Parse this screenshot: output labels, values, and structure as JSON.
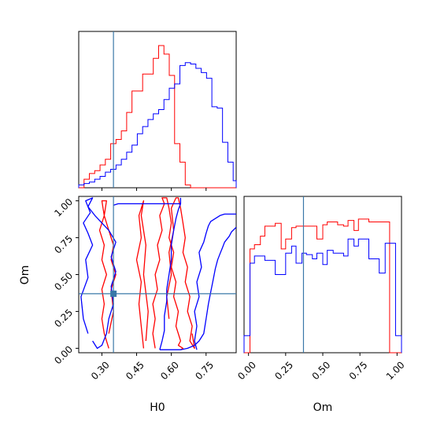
{
  "chart_data": {
    "type": "corner",
    "title": "",
    "parameters": [
      {
        "name": "H0",
        "label": "H0",
        "range": [
          0.2,
          0.88
        ],
        "ticks": [
          0.3,
          0.45,
          0.6,
          0.75
        ],
        "tick_labels": [
          "0.30",
          "0.45",
          "0.60",
          "0.75"
        ]
      },
      {
        "name": "Om",
        "label": "Om",
        "range": [
          -0.03,
          1.03
        ],
        "ticks": [
          0.0,
          0.25,
          0.5,
          0.75,
          1.0
        ],
        "tick_labels": [
          "0.00",
          "0.25",
          "0.50",
          "0.75",
          "1.00"
        ]
      }
    ],
    "truth": {
      "H0": 0.35,
      "Om": 0.37,
      "color": "#3a78a8"
    },
    "series": [
      {
        "color": "#ff0000",
        "hist_H0": {
          "edges": [
            0.2,
            0.223,
            0.246,
            0.269,
            0.292,
            0.315,
            0.338,
            0.361,
            0.384,
            0.407,
            0.43,
            0.453,
            0.476,
            0.499,
            0.522,
            0.545,
            0.568,
            0.591,
            0.614,
            0.637,
            0.66,
            0.683,
            0.706,
            0.729,
            0.752,
            0.775,
            0.798,
            0.821,
            0.844,
            0.867,
            0.88
          ],
          "heights": [
            0.0,
            0.06,
            0.1,
            0.12,
            0.16,
            0.2,
            0.31,
            0.34,
            0.4,
            0.53,
            0.68,
            0.68,
            0.8,
            0.8,
            0.91,
            1.0,
            0.94,
            0.79,
            0.31,
            0.18,
            0.02,
            0,
            0,
            0,
            0,
            0,
            0,
            0,
            0,
            0
          ]
        },
        "hist_Om": {
          "edges": [
            -0.03,
            0.01,
            0.04,
            0.08,
            0.11,
            0.15,
            0.18,
            0.22,
            0.25,
            0.29,
            0.32,
            0.36,
            0.39,
            0.43,
            0.46,
            0.5,
            0.53,
            0.57,
            0.6,
            0.64,
            0.67,
            0.71,
            0.74,
            0.78,
            0.81,
            0.85,
            0.88,
            0.92,
            0.95,
            0.99,
            1.03
          ],
          "heights": [
            0.0,
            0.73,
            0.76,
            0.82,
            0.89,
            0.89,
            0.91,
            0.73,
            0.8,
            0.88,
            0.89,
            0.89,
            0.89,
            0.89,
            0.8,
            0.9,
            0.92,
            0.92,
            0.9,
            0.89,
            0.93,
            0.86,
            0.94,
            0.94,
            0.92,
            0.92,
            0.92,
            0.92,
            0.0,
            0.0
          ]
        },
        "contours": [
          {
            "x": [
              0.33,
              0.31,
              0.3,
              0.31,
              0.3,
              0.32,
              0.3,
              0.31,
              0.29,
              0.31,
              0.3,
              0.32,
              0.31,
              0.33,
              0.35,
              0.34,
              0.36,
              0.34,
              0.35,
              0.33
            ],
            "y": [
              0.0,
              0.1,
              0.2,
              0.3,
              0.4,
              0.5,
              0.6,
              0.7,
              0.8,
              0.9,
              1.0,
              1.0,
              0.9,
              0.8,
              0.7,
              0.6,
              0.5,
              0.4,
              0.25,
              0.1
            ]
          },
          {
            "x": [
              0.48,
              0.47,
              0.46,
              0.47,
              0.45,
              0.47,
              0.46,
              0.48,
              0.47,
              0.49,
              0.48,
              0.5,
              0.49
            ],
            "y": [
              0.0,
              0.15,
              0.3,
              0.45,
              0.6,
              0.75,
              0.9,
              1.0,
              0.9,
              0.7,
              0.5,
              0.25,
              0.05
            ]
          },
          {
            "x": [
              0.53,
              0.52,
              0.53,
              0.52,
              0.54,
              0.53,
              0.55,
              0.54,
              0.56,
              0.55,
              0.57,
              0.56,
              0.58,
              0.59,
              0.6,
              0.59,
              0.61,
              0.6,
              0.62,
              0.61,
              0.63,
              0.62,
              0.64,
              0.63,
              0.65,
              0.64
            ],
            "y": [
              0.0,
              0.1,
              0.2,
              0.3,
              0.4,
              0.5,
              0.6,
              0.7,
              0.8,
              0.9,
              0.98,
              1.02,
              1.02,
              0.95,
              0.85,
              0.75,
              0.65,
              0.55,
              0.45,
              0.35,
              0.25,
              0.15,
              0.05,
              0.02,
              0.0,
              -0.01
            ]
          },
          {
            "x": [
              0.59,
              0.58,
              0.6,
              0.59,
              0.61,
              0.6,
              0.62,
              0.63,
              0.64,
              0.65,
              0.66,
              0.65,
              0.67,
              0.66,
              0.68,
              0.67,
              0.69,
              0.68,
              0.7,
              0.69
            ],
            "y": [
              0.2,
              0.35,
              0.5,
              0.65,
              0.8,
              0.95,
              1.02,
              1.02,
              0.95,
              0.85,
              0.75,
              0.65,
              0.55,
              0.45,
              0.35,
              0.25,
              0.15,
              0.05,
              0.0,
              0.1
            ]
          }
        ]
      },
      {
        "color": "#0000ff",
        "hist_H0": {
          "edges": [
            0.2,
            0.223,
            0.246,
            0.269,
            0.292,
            0.315,
            0.338,
            0.361,
            0.384,
            0.407,
            0.43,
            0.453,
            0.476,
            0.499,
            0.522,
            0.545,
            0.568,
            0.591,
            0.614,
            0.637,
            0.66,
            0.683,
            0.706,
            0.729,
            0.752,
            0.775,
            0.798,
            0.821,
            0.844,
            0.867,
            0.88
          ],
          "heights": [
            0.02,
            0.03,
            0.04,
            0.06,
            0.08,
            0.11,
            0.13,
            0.16,
            0.2,
            0.25,
            0.3,
            0.38,
            0.43,
            0.48,
            0.52,
            0.55,
            0.62,
            0.7,
            0.73,
            0.86,
            0.88,
            0.87,
            0.84,
            0.81,
            0.77,
            0.57,
            0.56,
            0.32,
            0.18,
            0.05
          ]
        },
        "hist_Om": {
          "edges": [
            -0.03,
            0.01,
            0.04,
            0.08,
            0.11,
            0.15,
            0.18,
            0.22,
            0.25,
            0.29,
            0.32,
            0.36,
            0.39,
            0.43,
            0.46,
            0.5,
            0.53,
            0.57,
            0.6,
            0.64,
            0.67,
            0.71,
            0.74,
            0.78,
            0.81,
            0.85,
            0.88,
            0.92,
            0.95,
            0.99,
            1.03
          ],
          "heights": [
            0.12,
            0.63,
            0.68,
            0.68,
            0.65,
            0.65,
            0.55,
            0.55,
            0.7,
            0.75,
            0.63,
            0.7,
            0.69,
            0.66,
            0.7,
            0.62,
            0.72,
            0.7,
            0.7,
            0.68,
            0.8,
            0.75,
            0.8,
            0.8,
            0.66,
            0.66,
            0.56,
            0.77,
            0.77,
            0.12
          ]
        },
        "contours": [
          {
            "x": [
              0.24,
              0.22,
              0.21,
              0.24,
              0.23,
              0.26,
              0.24,
              0.22,
              0.25,
              0.23,
              0.26,
              0.24,
              0.27,
              0.3,
              0.33,
              0.36,
              0.34,
              0.36,
              0.34,
              0.35,
              0.33,
              0.32,
              0.3,
              0.28,
              0.26
            ],
            "y": [
              0.1,
              0.2,
              0.35,
              0.48,
              0.6,
              0.7,
              0.78,
              0.85,
              0.92,
              1.0,
              1.02,
              0.96,
              0.9,
              0.85,
              0.8,
              0.72,
              0.62,
              0.52,
              0.42,
              0.3,
              0.2,
              0.1,
              0.02,
              0.0,
              0.05
            ]
          },
          {
            "x": [
              0.35,
              0.37,
              0.4,
              0.44,
              0.48,
              0.53,
              0.56,
              0.58,
              0.6,
              0.62,
              0.63,
              0.64
            ],
            "y": [
              0.97,
              0.98,
              0.98,
              0.98,
              0.98,
              0.98,
              0.98,
              0.98,
              0.98,
              0.98,
              0.98,
              0.98
            ]
          },
          {
            "x": [
              0.55,
              0.56,
              0.57,
              0.57,
              0.58,
              0.58,
              0.59,
              0.6,
              0.6,
              0.61,
              0.62,
              0.63,
              0.64,
              0.64
            ],
            "y": [
              -0.01,
              0.05,
              0.12,
              0.22,
              0.32,
              0.4,
              0.5,
              0.6,
              0.7,
              0.8,
              0.88,
              0.94,
              0.98,
              1.02
            ]
          },
          {
            "x": [
              0.71,
              0.7,
              0.71,
              0.7,
              0.72,
              0.71,
              0.73,
              0.72,
              0.74,
              0.75,
              0.76,
              0.77,
              0.79,
              0.81,
              0.83,
              0.85,
              0.88
            ],
            "y": [
              -0.01,
              0.05,
              0.15,
              0.25,
              0.35,
              0.45,
              0.55,
              0.65,
              0.72,
              0.78,
              0.83,
              0.86,
              0.88,
              0.9,
              0.91,
              0.91,
              0.91
            ]
          },
          {
            "x": [
              0.55,
              0.58,
              0.61,
              0.64,
              0.67,
              0.7,
              0.72,
              0.74,
              0.75,
              0.76,
              0.77,
              0.78,
              0.79,
              0.8,
              0.81,
              0.82,
              0.83,
              0.85,
              0.86,
              0.88
            ],
            "y": [
              -0.01,
              -0.01,
              -0.01,
              -0.01,
              0.0,
              0.02,
              0.05,
              0.1,
              0.2,
              0.3,
              0.38,
              0.46,
              0.54,
              0.6,
              0.64,
              0.68,
              0.72,
              0.76,
              0.79,
              0.82
            ]
          }
        ]
      }
    ]
  }
}
